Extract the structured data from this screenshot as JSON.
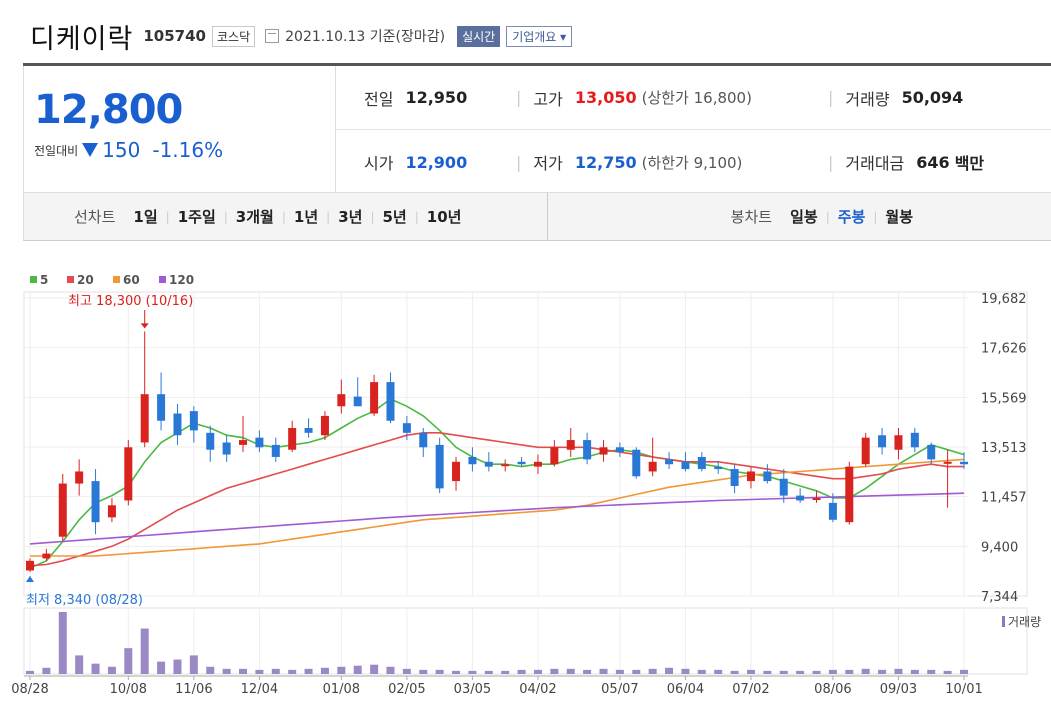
{
  "header": {
    "company_name": "디케이락",
    "stock_code": "105740",
    "market": "코스닥",
    "date_text": "2021.10.13 기준(장마감)",
    "realtime_label": "실시간",
    "overview_label": "기업개요 ▾"
  },
  "quote": {
    "current_price": "12,800",
    "change_label": "전일대비",
    "change_value": "150",
    "change_pct": "-1.16%",
    "prev_close_label": "전일",
    "prev_close": "12,950",
    "high_label": "고가",
    "high": "13,050",
    "upper_limit_text": "(상한가 16,800)",
    "volume_label": "거래량",
    "volume": "50,094",
    "open_label": "시가",
    "open": "12,900",
    "low_label": "저가",
    "low": "12,750",
    "lower_limit_text": "(하한가 9,100)",
    "amount_label": "거래대금",
    "amount": "646",
    "amount_unit": "백만"
  },
  "period_bar": {
    "line_chart_label": "선차트",
    "periods": [
      "1일",
      "1주일",
      "3개월",
      "1년",
      "3년",
      "5년",
      "10년"
    ],
    "candle_chart_label": "봉차트",
    "candle_types": [
      "일봉",
      "주봉",
      "월봉"
    ],
    "active_candle": "주봉"
  },
  "chart_data": {
    "type": "candlestick",
    "legend": [
      {
        "name": "5",
        "color": "#4cb944"
      },
      {
        "name": "20",
        "color": "#e34c4c"
      },
      {
        "name": "60",
        "color": "#f09737"
      },
      {
        "name": "120",
        "color": "#a05ad2"
      }
    ],
    "up_color": "#d8231f",
    "down_color": "#2a78d6",
    "y_ticks": [
      19682,
      17626,
      15569,
      13513,
      11457,
      9400,
      7344
    ],
    "ylim": [
      7344,
      19682
    ],
    "x_tick_labels": [
      "08/28",
      "10/08",
      "11/06",
      "12/04",
      "01/08",
      "02/05",
      "03/05",
      "04/02",
      "05/07",
      "06/04",
      "07/02",
      "08/06",
      "09/03",
      "10/01"
    ],
    "x_tick_positions": [
      0,
      6,
      10,
      14,
      19,
      23,
      27,
      31,
      36,
      40,
      44,
      49,
      53,
      57
    ],
    "high_annotation": "최고 18,300 (10/16)",
    "high_index": 7,
    "low_annotation": "최저 8,340 (08/28)",
    "low_index": 0,
    "volume_label": "거래량",
    "candles": [
      {
        "o": 8400,
        "h": 8900,
        "l": 8340,
        "c": 8800
      },
      {
        "o": 8900,
        "h": 9300,
        "l": 8800,
        "c": 9100
      },
      {
        "o": 9800,
        "h": 12400,
        "l": 9600,
        "c": 12000
      },
      {
        "o": 12000,
        "h": 13000,
        "l": 11500,
        "c": 12500
      },
      {
        "o": 12100,
        "h": 12600,
        "l": 9900,
        "c": 10400
      },
      {
        "o": 10600,
        "h": 11400,
        "l": 10400,
        "c": 11100
      },
      {
        "o": 11300,
        "h": 13800,
        "l": 11100,
        "c": 13500
      },
      {
        "o": 13700,
        "h": 18300,
        "l": 13500,
        "c": 15700
      },
      {
        "o": 15700,
        "h": 16600,
        "l": 14200,
        "c": 14600
      },
      {
        "o": 14900,
        "h": 15300,
        "l": 13600,
        "c": 14000
      },
      {
        "o": 15000,
        "h": 15200,
        "l": 13700,
        "c": 14200
      },
      {
        "o": 14100,
        "h": 14400,
        "l": 12900,
        "c": 13400
      },
      {
        "o": 13700,
        "h": 14000,
        "l": 12900,
        "c": 13200
      },
      {
        "o": 13600,
        "h": 14800,
        "l": 13300,
        "c": 13800
      },
      {
        "o": 13900,
        "h": 14200,
        "l": 13300,
        "c": 13500
      },
      {
        "o": 13600,
        "h": 13900,
        "l": 12900,
        "c": 13100
      },
      {
        "o": 13400,
        "h": 14600,
        "l": 13300,
        "c": 14300
      },
      {
        "o": 14300,
        "h": 14700,
        "l": 13900,
        "c": 14100
      },
      {
        "o": 14000,
        "h": 15000,
        "l": 13800,
        "c": 14800
      },
      {
        "o": 15200,
        "h": 16300,
        "l": 14900,
        "c": 15700
      },
      {
        "o": 15600,
        "h": 16400,
        "l": 15200,
        "c": 15200
      },
      {
        "o": 14900,
        "h": 16500,
        "l": 14800,
        "c": 16200
      },
      {
        "o": 16200,
        "h": 16600,
        "l": 14500,
        "c": 14600
      },
      {
        "o": 14500,
        "h": 14800,
        "l": 13800,
        "c": 14100
      },
      {
        "o": 14100,
        "h": 14300,
        "l": 13100,
        "c": 13500
      },
      {
        "o": 13600,
        "h": 13900,
        "l": 11600,
        "c": 11800
      },
      {
        "o": 12100,
        "h": 13100,
        "l": 11700,
        "c": 12900
      },
      {
        "o": 13100,
        "h": 13500,
        "l": 12500,
        "c": 12800
      },
      {
        "o": 12900,
        "h": 13300,
        "l": 12500,
        "c": 12700
      },
      {
        "o": 12800,
        "h": 13000,
        "l": 12500,
        "c": 12800
      },
      {
        "o": 12900,
        "h": 13100,
        "l": 12700,
        "c": 12800
      },
      {
        "o": 12700,
        "h": 13200,
        "l": 12400,
        "c": 12900
      },
      {
        "o": 12800,
        "h": 13800,
        "l": 12700,
        "c": 13500
      },
      {
        "o": 13400,
        "h": 14300,
        "l": 13100,
        "c": 13800
      },
      {
        "o": 13800,
        "h": 14100,
        "l": 12800,
        "c": 13000
      },
      {
        "o": 13200,
        "h": 13800,
        "l": 12900,
        "c": 13500
      },
      {
        "o": 13500,
        "h": 13700,
        "l": 13100,
        "c": 13300
      },
      {
        "o": 13400,
        "h": 13500,
        "l": 12200,
        "c": 12300
      },
      {
        "o": 12500,
        "h": 13900,
        "l": 12300,
        "c": 12900
      },
      {
        "o": 13000,
        "h": 13300,
        "l": 12600,
        "c": 12800
      },
      {
        "o": 12900,
        "h": 13300,
        "l": 12500,
        "c": 12600
      },
      {
        "o": 13100,
        "h": 13300,
        "l": 12500,
        "c": 12600
      },
      {
        "o": 12700,
        "h": 12900,
        "l": 12400,
        "c": 12600
      },
      {
        "o": 12600,
        "h": 12800,
        "l": 11600,
        "c": 11900
      },
      {
        "o": 12100,
        "h": 12700,
        "l": 11800,
        "c": 12500
      },
      {
        "o": 12500,
        "h": 12800,
        "l": 12000,
        "c": 12100
      },
      {
        "o": 12200,
        "h": 12600,
        "l": 11200,
        "c": 11500
      },
      {
        "o": 11500,
        "h": 11800,
        "l": 11200,
        "c": 11300
      },
      {
        "o": 11400,
        "h": 11700,
        "l": 11200,
        "c": 11400
      },
      {
        "o": 11200,
        "h": 11600,
        "l": 10400,
        "c": 10500
      },
      {
        "o": 10400,
        "h": 12900,
        "l": 10300,
        "c": 12700
      },
      {
        "o": 12800,
        "h": 14100,
        "l": 12700,
        "c": 13900
      },
      {
        "o": 14000,
        "h": 14300,
        "l": 13200,
        "c": 13500
      },
      {
        "o": 13400,
        "h": 14300,
        "l": 13000,
        "c": 14000
      },
      {
        "o": 14100,
        "h": 14300,
        "l": 13300,
        "c": 13500
      },
      {
        "o": 13600,
        "h": 13700,
        "l": 12800,
        "c": 13000
      },
      {
        "o": 12900,
        "h": 13400,
        "l": 11000,
        "c": 12900
      },
      {
        "o": 12900,
        "h": 13300,
        "l": 12600,
        "c": 12800
      }
    ],
    "volume": [
      3,
      6,
      60,
      18,
      10,
      7,
      25,
      44,
      12,
      14,
      18,
      7,
      5,
      5,
      4,
      5,
      4,
      5,
      6,
      7,
      8,
      9,
      7,
      5,
      4,
      4,
      3,
      3,
      3,
      3,
      4,
      4,
      5,
      5,
      4,
      5,
      4,
      4,
      5,
      6,
      5,
      4,
      4,
      3,
      4,
      3,
      3,
      3,
      3,
      4,
      4,
      5,
      4,
      5,
      4,
      4,
      3,
      4
    ],
    "ma5": [
      8500,
      8800,
      9600,
      10500,
      11200,
      11500,
      11900,
      12900,
      13700,
      14100,
      14500,
      14300,
      14000,
      13900,
      13600,
      13500,
      13600,
      13700,
      13900,
      14300,
      14700,
      15000,
      15500,
      15200,
      14800,
      14200,
      13500,
      13100,
      12800,
      12800,
      12700,
      12800,
      12800,
      13000,
      13100,
      13300,
      13400,
      13300,
      13100,
      13000,
      12900,
      12800,
      12700,
      12500,
      12400,
      12300,
      12100,
      11900,
      11700,
      11400,
      11400,
      11800,
      12300,
      12800,
      13200,
      13600,
      13400,
      13200
    ],
    "ma20": [
      8600,
      8650,
      8800,
      9000,
      9200,
      9400,
      9700,
      10100,
      10500,
      10900,
      11200,
      11500,
      11800,
      12000,
      12200,
      12400,
      12600,
      12800,
      13000,
      13200,
      13400,
      13600,
      13800,
      14000,
      14100,
      14100,
      14000,
      13900,
      13800,
      13700,
      13600,
      13500,
      13500,
      13500,
      13500,
      13400,
      13300,
      13200,
      13100,
      13000,
      12900,
      12900,
      12900,
      12800,
      12700,
      12600,
      12500,
      12400,
      12300,
      12200,
      12200,
      12300,
      12400,
      12600,
      12700,
      12800,
      12700,
      12700
    ],
    "ma60": [
      9000,
      9000,
      9000,
      9000,
      9000,
      9050,
      9100,
      9150,
      9200,
      9250,
      9300,
      9350,
      9400,
      9450,
      9500,
      9600,
      9700,
      9800,
      9900,
      10000,
      10100,
      10200,
      10300,
      10400,
      10500,
      10550,
      10600,
      10650,
      10700,
      10750,
      10800,
      10850,
      10900,
      11000,
      11100,
      11250,
      11400,
      11550,
      11700,
      11850,
      11950,
      12050,
      12150,
      12250,
      12350,
      12400,
      12450,
      12500,
      12550,
      12600,
      12650,
      12700,
      12750,
      12800,
      12850,
      12900,
      12950,
      13000
    ],
    "ma120": [
      9500,
      9550,
      9600,
      9650,
      9700,
      9750,
      9800,
      9850,
      9900,
      9950,
      10000,
      10050,
      10100,
      10150,
      10200,
      10250,
      10300,
      10350,
      10400,
      10450,
      10500,
      10550,
      10600,
      10640,
      10680,
      10720,
      10760,
      10800,
      10840,
      10880,
      10920,
      10960,
      11000,
      11030,
      11060,
      11090,
      11120,
      11150,
      11180,
      11210,
      11240,
      11270,
      11300,
      11320,
      11340,
      11360,
      11380,
      11400,
      11420,
      11440,
      11460,
      11480,
      11500,
      11520,
      11540,
      11560,
      11580,
      11600
    ]
  }
}
